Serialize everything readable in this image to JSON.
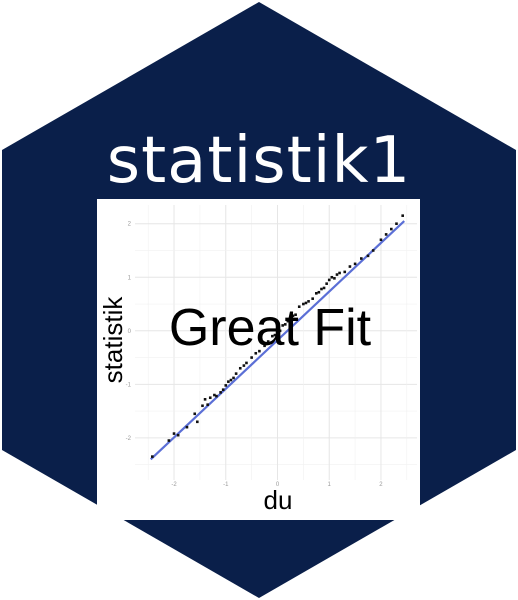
{
  "sticker": {
    "title": "statistik1",
    "overlay_text": "Great Fit",
    "hex_color": "#0a1f4a",
    "text_color": "#ffffff"
  },
  "chart_data": {
    "type": "scatter",
    "title": "",
    "xlabel": "du",
    "ylabel": "statistik",
    "xlim": [
      -2.6,
      2.6
    ],
    "ylim": [
      -2.6,
      2.2
    ],
    "grid": true,
    "y_ticks": [
      "-2",
      "-1",
      "0",
      "1",
      "2"
    ],
    "x_ticks": [
      "-2",
      "-1",
      "0",
      "1",
      "2"
    ],
    "fit_line": {
      "color": "#5b6fd6",
      "from": [
        -2.45,
        -2.4
      ],
      "to": [
        2.45,
        2.05
      ]
    },
    "point_color": "#111111",
    "series": [
      {
        "x": [
          -2.42,
          -2.1,
          -2.0,
          -1.92,
          -1.75,
          -1.6,
          -1.55,
          -1.45,
          -1.4,
          -1.35,
          -1.3,
          -1.22,
          -1.18,
          -1.1,
          -1.05,
          -1.0,
          -0.95,
          -0.9,
          -0.85,
          -0.8,
          -0.72,
          -0.65,
          -0.6,
          -0.5,
          -0.42,
          -0.35,
          -0.25,
          -0.18,
          -0.1,
          -0.05,
          0.0,
          0.05,
          0.1,
          0.15,
          0.2,
          0.25,
          0.3,
          0.35,
          0.42,
          0.5,
          0.55,
          0.6,
          0.68,
          0.75,
          0.8,
          0.85,
          0.9,
          0.95,
          1.0,
          1.05,
          1.1,
          1.15,
          1.2,
          1.3,
          1.4,
          1.5,
          1.62,
          1.75,
          1.85,
          2.0,
          2.1,
          2.2,
          2.3,
          2.42
        ],
        "y": [
          -2.35,
          -2.05,
          -1.92,
          -1.95,
          -1.8,
          -1.55,
          -1.7,
          -1.4,
          -1.28,
          -1.38,
          -1.25,
          -1.2,
          -1.22,
          -1.15,
          -1.1,
          -1.02,
          -0.95,
          -0.92,
          -0.88,
          -0.8,
          -0.7,
          -0.65,
          -0.6,
          -0.5,
          -0.42,
          -0.38,
          -0.28,
          -0.2,
          -0.1,
          -0.08,
          0.02,
          0.0,
          0.1,
          0.12,
          0.18,
          0.2,
          0.28,
          0.3,
          0.45,
          0.5,
          0.52,
          0.55,
          0.6,
          0.7,
          0.72,
          0.78,
          0.8,
          0.88,
          0.95,
          1.0,
          0.98,
          1.05,
          1.08,
          1.1,
          1.2,
          1.25,
          1.35,
          1.4,
          1.5,
          1.7,
          1.8,
          1.9,
          2.0,
          2.15
        ]
      }
    ]
  }
}
